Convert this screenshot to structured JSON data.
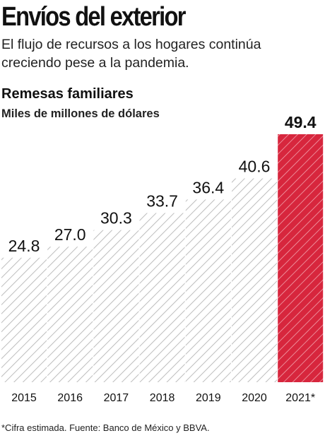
{
  "header": {
    "title": "Envíos del exterior",
    "subtitle_lines": [
      "El flujo de recursos a los hogares continúa",
      "creciendo pese a la pandemia."
    ]
  },
  "chart_data": {
    "type": "bar",
    "title": "Remesas familiares",
    "subtitle": "Miles de millones de dólares",
    "categories": [
      "2015",
      "2016",
      "2017",
      "2018",
      "2019",
      "2020",
      "2021*"
    ],
    "values": [
      24.8,
      27.0,
      30.3,
      33.7,
      36.4,
      40.6,
      49.4
    ],
    "value_labels": [
      "24.8",
      "27.0",
      "30.3",
      "33.7",
      "36.4",
      "40.6",
      "49.4"
    ],
    "highlight_index": 6,
    "bar_style": "diagonal-hatch",
    "colors": {
      "hatch": "#bdbdbd",
      "highlight": "#d7263d",
      "highlight_hatch": "#f2a2ad",
      "text": "#111111"
    },
    "ylim": [
      0,
      49.4
    ],
    "grid": false,
    "legend": "none"
  },
  "footnote": "*Cifra estimada. Fuente: Banco de México y BBVA."
}
